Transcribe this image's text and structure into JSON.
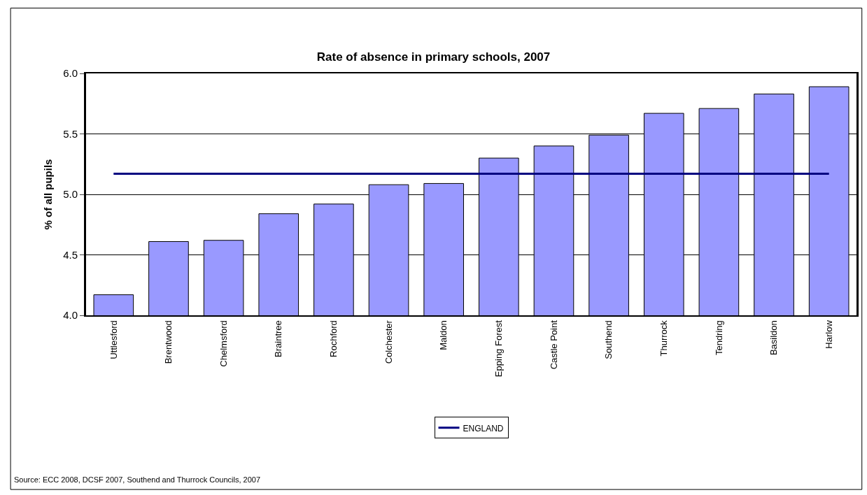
{
  "chart_data": {
    "type": "bar",
    "title": "Rate of absence in primary schools, 2007",
    "ylabel": "% of all pupils",
    "categories": [
      "Uttlesford",
      "Brentwood",
      "Chelmsford",
      "Braintree",
      "Rochford",
      "Colchester",
      "Maldon",
      "Epping Forest",
      "Castle Point",
      "Southend",
      "Thurrock",
      "Tendring",
      "Basildon",
      "Harlow"
    ],
    "series": [
      {
        "color": "#9999ff",
        "values": [
          4.17,
          4.61,
          4.62,
          4.84,
          4.92,
          5.08,
          5.09,
          5.3,
          5.4,
          5.49,
          5.67,
          5.71,
          5.83,
          5.89
        ]
      },
      {
        "type": "line",
        "name": "ENGLAND",
        "color": "#000080",
        "values": [
          5.17,
          5.17,
          5.17,
          5.17,
          5.17,
          5.17,
          5.17,
          5.17,
          5.17,
          5.17,
          5.17,
          5.17,
          5.17,
          5.17
        ]
      }
    ],
    "ylim": [
      4.0,
      6.0
    ],
    "yticks": [
      {
        "value": 4.0,
        "label": "4.0"
      },
      {
        "value": 4.5,
        "label": "4.5"
      },
      {
        "value": 5.0,
        "label": "5.0"
      },
      {
        "value": 5.5,
        "label": "5.5"
      },
      {
        "value": 6.0,
        "label": "6.0"
      }
    ],
    "grid": "y",
    "legend": "bottom",
    "marker": "none",
    "line_style": "solid",
    "annotations": [
      "Source: ECC 2008, DCSF 2007, Southend and Thurrock Councils, 2007"
    ]
  }
}
